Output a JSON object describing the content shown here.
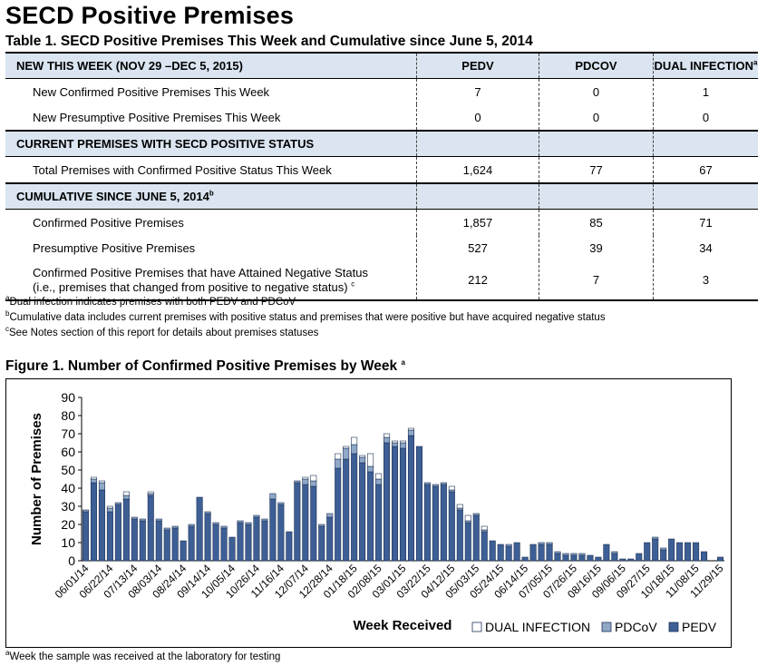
{
  "page": {
    "title": "SECD Positive Premises",
    "table_title": "Table 1. SECD Positive Premises This Week and Cumulative since June 5, 2014"
  },
  "table": {
    "columns": [
      "PEDV",
      "PDCOV",
      "DUAL INFECTION"
    ],
    "dual_marker": "a",
    "section_new": "NEW THIS WEEK  (NOV 29 –DEC 5, 2015)",
    "row_new_confirmed": {
      "label": "New Confirmed Positive Premises This Week",
      "values": [
        "7",
        "0",
        "1"
      ]
    },
    "row_new_presumptive": {
      "label": "New Presumptive Positive Premises This Week",
      "values": [
        "0",
        "0",
        "0"
      ]
    },
    "section_current": "CURRENT PREMISES WITH SECD POSITIVE STATUS",
    "row_total_confirmed": {
      "label": "Total Premises with Confirmed Positive Status This Week",
      "values": [
        "1,624",
        "77",
        "67"
      ]
    },
    "section_cumulative": "CUMULATIVE SINCE JUNE 5, 2014",
    "cumulative_marker": "b",
    "row_cum_confirmed": {
      "label": "Confirmed Positive Premises",
      "values": [
        "1,857",
        "85",
        "71"
      ]
    },
    "row_cum_presumptive": {
      "label": "Presumptive Positive Premises",
      "values": [
        "527",
        "39",
        "34"
      ]
    },
    "row_cum_negative": {
      "label_line1": "Confirmed Positive Premises that have Attained Negative Status",
      "label_line2": "(i.e., premises that changed from positive to negative status)",
      "marker": "c",
      "values": [
        "212",
        "7",
        "3"
      ]
    }
  },
  "footnotes": [
    {
      "marker": "a",
      "text": "Dual infection indicates premises with both PEDV and PDCoV"
    },
    {
      "marker": "b",
      "text": "Cumulative data includes current premises with positive status and premises that were positive but have acquired negative status"
    },
    {
      "marker": "c",
      "text": "See Notes section of this report for details about premises statuses"
    }
  ],
  "figure": {
    "title": "Figure 1.  Number of Confirmed Positive Premises by Week",
    "title_marker": "a",
    "footnote_marker": "a",
    "footnote": "Week the sample was received at the laboratory for testing"
  },
  "colors": {
    "pedv": "#3d5f95",
    "pdcov": "#8fa8c8",
    "dual": "#ffffff",
    "header_bg": "#dae5f1"
  },
  "chart_data": {
    "type": "bar",
    "stacked": true,
    "xlabel": "Week Received",
    "ylabel": "Number of Premises",
    "ylim": [
      0,
      90
    ],
    "yticks": [
      0,
      10,
      20,
      30,
      40,
      50,
      60,
      70,
      80,
      90
    ],
    "legend_position": "bottom-right",
    "categories": [
      "06/01/14",
      "06/08/14",
      "06/15/14",
      "06/22/14",
      "06/29/14",
      "07/06/14",
      "07/13/14",
      "07/20/14",
      "07/27/14",
      "08/03/14",
      "08/10/14",
      "08/17/14",
      "08/24/14",
      "08/31/14",
      "09/07/14",
      "09/14/14",
      "09/21/14",
      "09/28/14",
      "10/05/14",
      "10/12/14",
      "10/19/14",
      "10/26/14",
      "11/02/14",
      "11/09/14",
      "11/16/14",
      "11/23/14",
      "11/30/14",
      "12/07/14",
      "12/14/14",
      "12/21/14",
      "12/28/14",
      "01/04/15",
      "01/11/15",
      "01/18/15",
      "01/25/15",
      "02/01/15",
      "02/08/15",
      "02/15/15",
      "02/22/15",
      "03/01/15",
      "03/08/15",
      "03/15/15",
      "03/22/15",
      "03/29/15",
      "04/05/15",
      "04/12/15",
      "04/19/15",
      "04/26/15",
      "05/03/15",
      "05/10/15",
      "05/17/15",
      "05/24/15",
      "05/31/15",
      "06/07/15",
      "06/14/15",
      "06/21/15",
      "06/28/15",
      "07/05/15",
      "07/12/15",
      "07/19/15",
      "07/26/15",
      "08/02/15",
      "08/09/15",
      "08/16/15",
      "08/23/15",
      "08/30/15",
      "09/06/15",
      "09/13/15",
      "09/20/15",
      "09/27/15",
      "10/04/15",
      "10/11/15",
      "10/18/15",
      "10/25/15",
      "11/01/15",
      "11/08/15",
      "11/15/15",
      "11/22/15",
      "11/29/15"
    ],
    "tick_labels": [
      "06/01/14",
      "06/22/14",
      "07/13/14",
      "08/03/14",
      "08/24/14",
      "09/14/14",
      "10/05/14",
      "10/26/14",
      "11/16/14",
      "12/07/14",
      "12/28/14",
      "01/18/15",
      "02/08/15",
      "03/01/15",
      "03/22/15",
      "04/12/15",
      "05/03/15",
      "05/24/15",
      "06/14/15",
      "07/05/15",
      "07/26/15",
      "08/16/15",
      "09/06/15",
      "09/27/15",
      "10/18/15",
      "11/08/15",
      "11/29/15"
    ],
    "series": [
      {
        "name": "PEDV",
        "values": [
          27,
          43,
          39,
          27,
          31,
          34,
          23,
          22,
          36,
          22,
          17,
          18,
          11,
          19,
          35,
          26,
          20,
          18,
          13,
          21,
          20,
          24,
          22,
          34,
          31,
          16,
          43,
          42,
          41,
          19,
          24,
          51,
          56,
          59,
          54,
          49,
          42,
          65,
          63,
          62,
          69,
          63,
          42,
          41,
          42,
          38,
          28,
          21,
          25,
          16,
          11,
          9,
          8,
          10,
          2,
          9,
          9,
          9,
          4,
          3,
          3,
          3,
          3,
          2,
          9,
          4,
          1,
          1,
          4,
          10,
          12,
          6,
          12,
          10,
          10,
          10,
          5,
          0,
          2
        ]
      },
      {
        "name": "PDCoV",
        "values": [
          1,
          2,
          4,
          2,
          1,
          2,
          1,
          1,
          1,
          1,
          1,
          1,
          0,
          1,
          0,
          1,
          1,
          1,
          0,
          1,
          1,
          1,
          1,
          3,
          1,
          0,
          1,
          3,
          3,
          1,
          2,
          5,
          6,
          5,
          3,
          3,
          3,
          3,
          2,
          3,
          3,
          0,
          1,
          1,
          1,
          1,
          1,
          1,
          1,
          1,
          0,
          0,
          1,
          0,
          0,
          0,
          1,
          1,
          1,
          1,
          1,
          1,
          0,
          0,
          0,
          1,
          0,
          0,
          0,
          0,
          1,
          1,
          0,
          0,
          0,
          0,
          0,
          0,
          0
        ]
      },
      {
        "name": "DUAL INFECTION",
        "values": [
          0,
          1,
          1,
          1,
          0,
          2,
          0,
          0,
          1,
          0,
          0,
          0,
          0,
          0,
          0,
          0,
          0,
          0,
          0,
          0,
          0,
          0,
          0,
          0,
          0,
          0,
          0,
          1,
          3,
          0,
          0,
          3,
          1,
          4,
          1,
          7,
          3,
          2,
          1,
          1,
          1,
          0,
          0,
          0,
          0,
          2,
          2,
          3,
          0,
          2,
          0,
          0,
          0,
          0,
          0,
          0,
          0,
          0,
          0,
          0,
          0,
          0,
          0,
          0,
          0,
          0,
          0,
          0,
          0,
          0,
          0,
          0,
          0,
          0,
          0,
          0,
          0,
          0,
          0
        ]
      }
    ],
    "legend": [
      "DUAL INFECTION",
      "PDCoV",
      "PEDV"
    ]
  }
}
